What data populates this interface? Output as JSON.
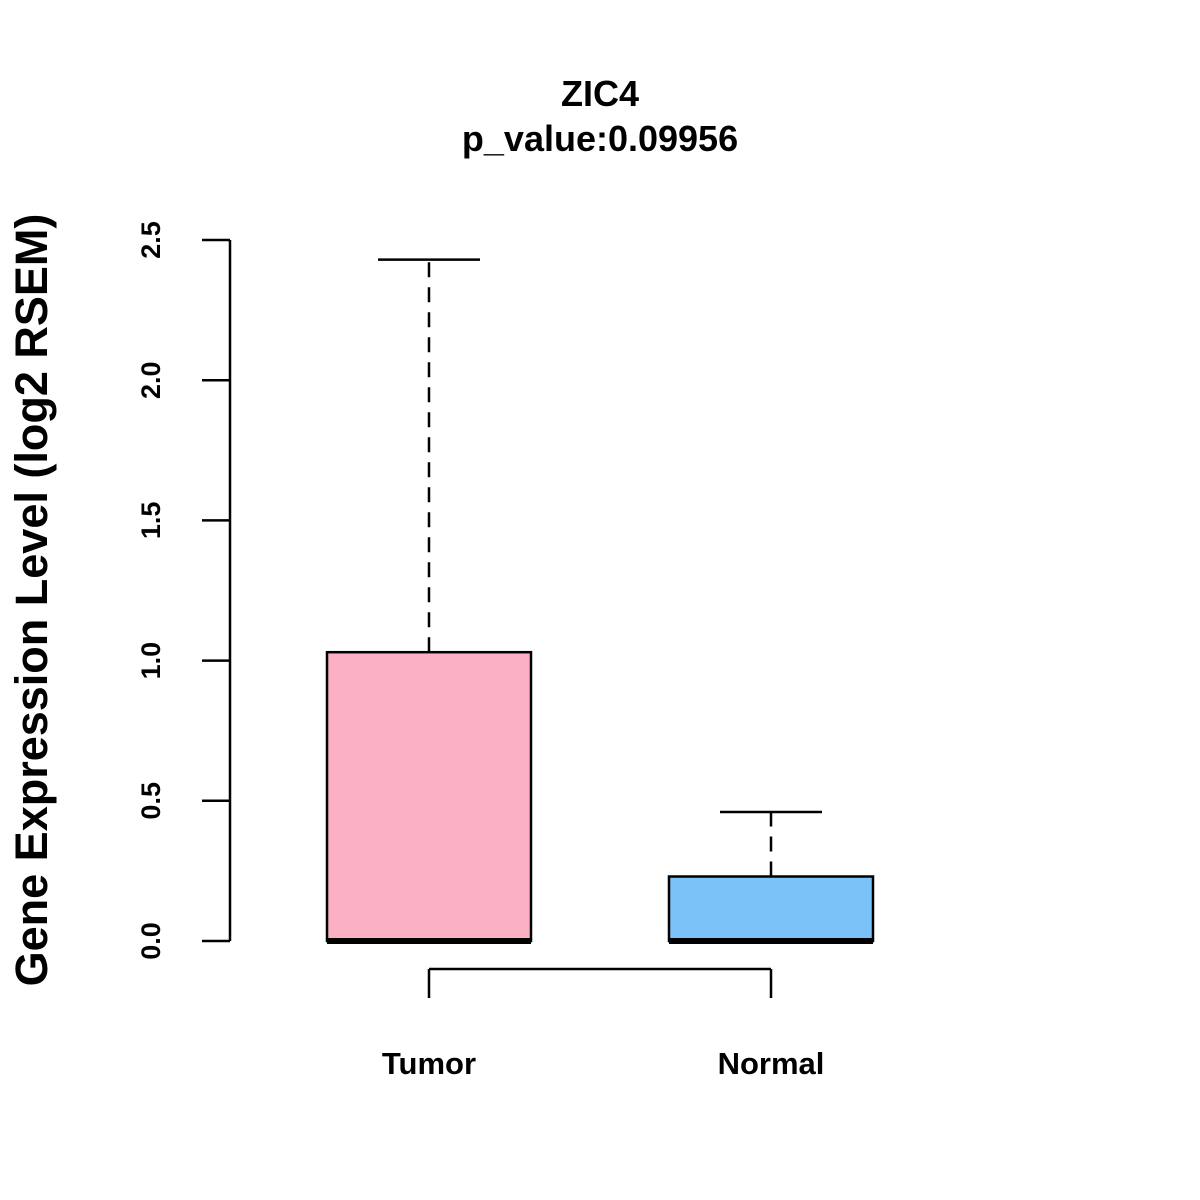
{
  "chart_data": {
    "type": "boxplot",
    "title": "ZIC4",
    "subtitle": "p_value:0.09956",
    "ylabel": "Gene Expression Level (log2 RSEM)",
    "xlabel": "",
    "ylim": [
      0,
      2.5
    ],
    "yticks": [
      "0.0",
      "0.5",
      "1.0",
      "1.5",
      "2.0",
      "2.5"
    ],
    "ytick_values": [
      0,
      0.5,
      1.0,
      1.5,
      2.0,
      2.5
    ],
    "groups": [
      {
        "name": "Tumor",
        "color": "#FBB1C3",
        "whisker_low": 0.0,
        "q1": 0.0,
        "median": 0.0,
        "q3": 1.03,
        "whisker_high": 2.43
      },
      {
        "name": "Normal",
        "color": "#7AC2F8",
        "whisker_low": 0.0,
        "q1": 0.0,
        "median": 0.0,
        "q3": 0.23,
        "whisker_high": 0.46
      }
    ]
  }
}
